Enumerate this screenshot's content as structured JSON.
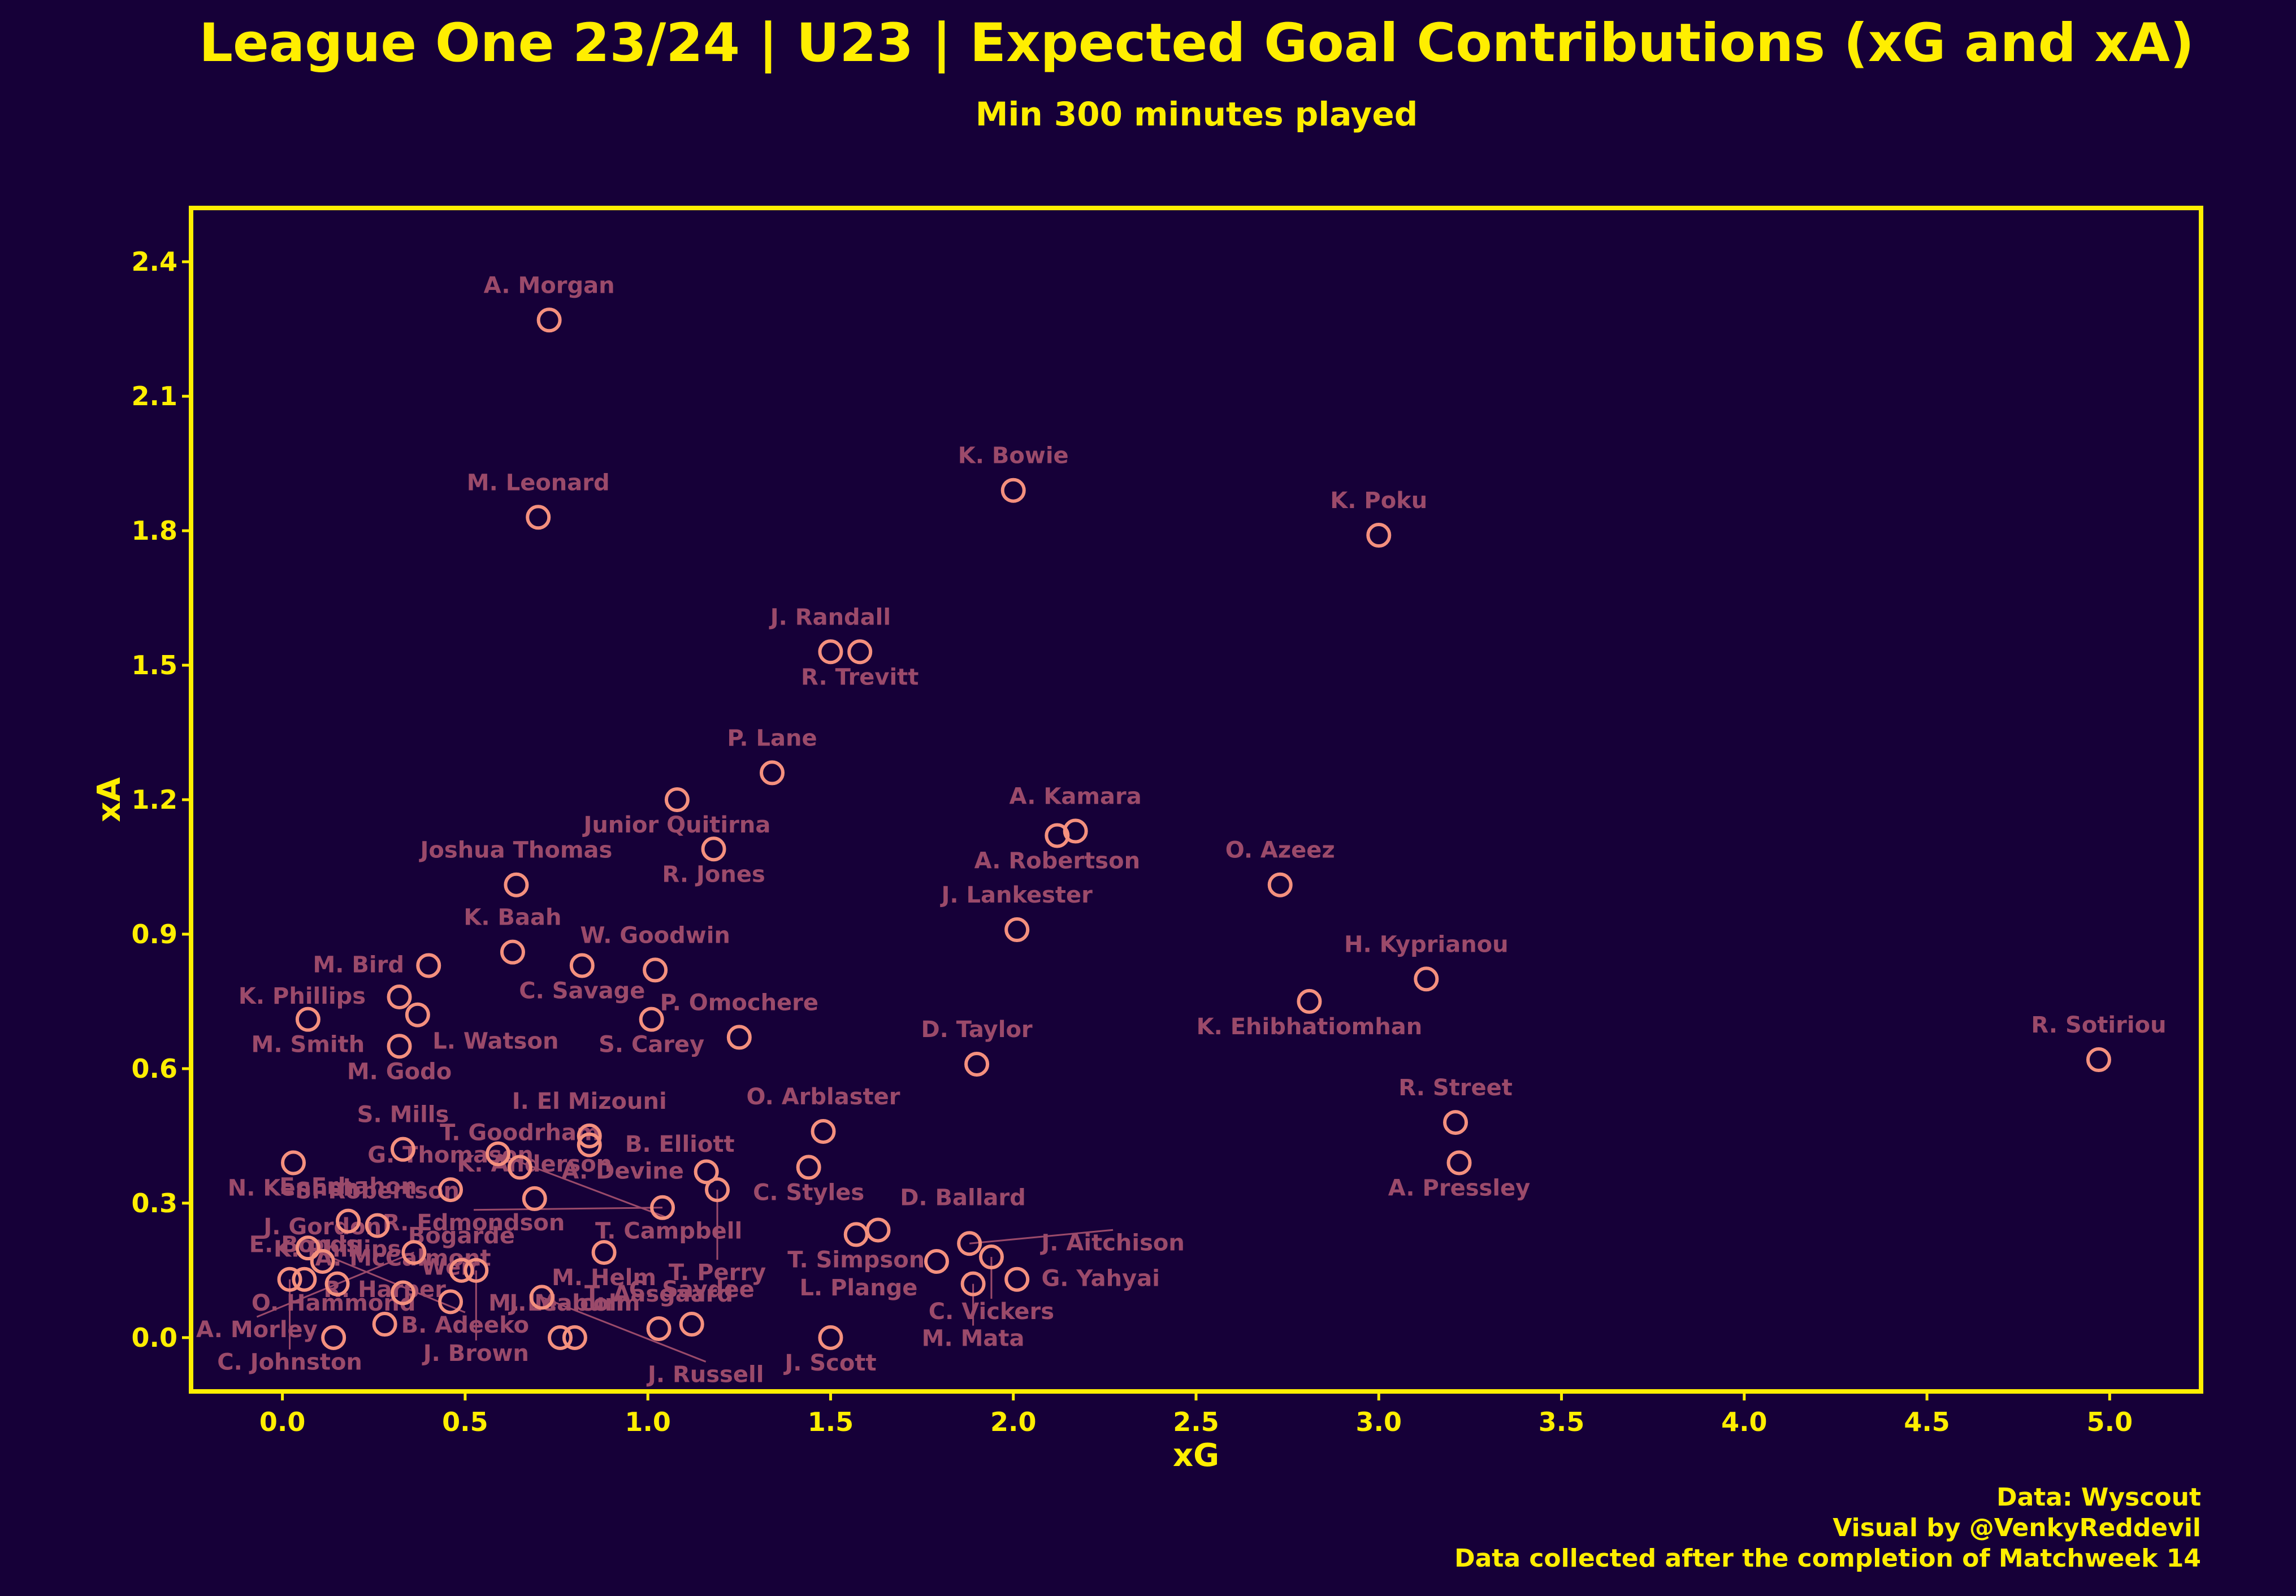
{
  "chart_data": {
    "type": "scatter",
    "title": "League One 23/24 | U23 | Expected Goal Contributions (xG and xA)",
    "subtitle": "Min 300 minutes played",
    "xlabel": "xG",
    "ylabel": "xA",
    "xlim": [
      -0.25,
      5.25
    ],
    "ylim": [
      -0.12,
      2.52
    ],
    "xticks": [
      "0.0",
      "0.5",
      "1.0",
      "1.5",
      "2.0",
      "2.5",
      "3.0",
      "3.5",
      "4.0",
      "4.5",
      "5.0"
    ],
    "yticks": [
      "0.0",
      "0.3",
      "0.6",
      "0.9",
      "1.2",
      "1.5",
      "1.8",
      "2.1",
      "2.4"
    ],
    "grid": false,
    "colors": {
      "background": "#160038",
      "accent": "#ffee00",
      "marker": "#f4907e",
      "label": "#9b4a6a"
    },
    "points": [
      {
        "name": "A. Morgan",
        "x": 0.73,
        "y": 2.27
      },
      {
        "name": "K. Bowie",
        "x": 2.0,
        "y": 1.89
      },
      {
        "name": "M. Leonard",
        "x": 0.7,
        "y": 1.83
      },
      {
        "name": "K. Poku",
        "x": 3.0,
        "y": 1.79
      },
      {
        "name": "J. Randall",
        "x": 1.5,
        "y": 1.53
      },
      {
        "name": "R. Trevitt",
        "x": 1.58,
        "y": 1.53
      },
      {
        "name": "P. Lane",
        "x": 1.34,
        "y": 1.26
      },
      {
        "name": "Junior Quitirna",
        "x": 1.08,
        "y": 1.2
      },
      {
        "name": "A. Kamara",
        "x": 2.17,
        "y": 1.13
      },
      {
        "name": "A. Robertson",
        "x": 2.12,
        "y": 1.12
      },
      {
        "name": "R. Jones",
        "x": 1.18,
        "y": 1.09
      },
      {
        "name": "O. Azeez",
        "x": 2.73,
        "y": 1.01
      },
      {
        "name": "Joshua Thomas",
        "x": 0.64,
        "y": 1.01
      },
      {
        "name": "J. Lankester",
        "x": 2.01,
        "y": 0.91
      },
      {
        "name": "K. Baah",
        "x": 0.63,
        "y": 0.86
      },
      {
        "name": "M. Bird",
        "x": 0.4,
        "y": 0.83
      },
      {
        "name": "C. Savage",
        "x": 0.82,
        "y": 0.83
      },
      {
        "name": "W. Goodwin",
        "x": 1.02,
        "y": 0.82
      },
      {
        "name": "H. Kyprianou",
        "x": 3.13,
        "y": 0.8
      },
      {
        "name": "K. Phillips",
        "x": 0.32,
        "y": 0.76
      },
      {
        "name": "K. Ehibhatiomhan",
        "x": 2.81,
        "y": 0.75
      },
      {
        "name": "L. Watson",
        "x": 0.37,
        "y": 0.72
      },
      {
        "name": "S. Carey",
        "x": 1.01,
        "y": 0.71
      },
      {
        "name": "M. Smith",
        "x": 0.07,
        "y": 0.71
      },
      {
        "name": "P. Omochere",
        "x": 1.25,
        "y": 0.67
      },
      {
        "name": "M. Godo",
        "x": 0.32,
        "y": 0.65
      },
      {
        "name": "R. Sotiriou",
        "x": 4.97,
        "y": 0.62
      },
      {
        "name": "D. Taylor",
        "x": 1.9,
        "y": 0.61
      },
      {
        "name": "R. Street",
        "x": 3.21,
        "y": 0.48
      },
      {
        "name": "O. Arblaster",
        "x": 1.48,
        "y": 0.46
      },
      {
        "name": "I. El Mizouni",
        "x": 0.84,
        "y": 0.45
      },
      {
        "name": "B. Elliott",
        "x": 0.84,
        "y": 0.43
      },
      {
        "name": "S. Mills",
        "x": 0.33,
        "y": 0.42
      },
      {
        "name": "T. Campbell",
        "x": 0.59,
        "y": 0.41
      },
      {
        "name": "N. Kenneh",
        "x": 0.03,
        "y": 0.39
      },
      {
        "name": "A. Pressley",
        "x": 3.22,
        "y": 0.39
      },
      {
        "name": "T. Goodrham",
        "x": 0.65,
        "y": 0.38
      },
      {
        "name": "C. Styles",
        "x": 1.44,
        "y": 0.38
      },
      {
        "name": "A. Devine",
        "x": 1.16,
        "y": 0.37
      },
      {
        "name": "G. Thomason",
        "x": 0.46,
        "y": 0.33
      },
      {
        "name": "T. Perry",
        "x": 1.19,
        "y": 0.33
      },
      {
        "name": "K. Anderson",
        "x": 0.69,
        "y": 0.31
      },
      {
        "name": "R. Edmondson",
        "x": 1.04,
        "y": 0.29
      },
      {
        "name": "E. Erhahon",
        "x": 0.18,
        "y": 0.26
      },
      {
        "name": "S. Robertson",
        "x": 0.26,
        "y": 0.25
      },
      {
        "name": "D. Ballard",
        "x": 1.63,
        "y": 0.24
      },
      {
        "name": "T. Simpson",
        "x": 1.57,
        "y": 0.23
      },
      {
        "name": "J. Aitchison",
        "x": 1.88,
        "y": 0.21
      },
      {
        "name": "B. Adeeko",
        "x": 0.07,
        "y": 0.2
      },
      {
        "name": "A. Morley",
        "x": 0.36,
        "y": 0.19
      },
      {
        "name": "M. Helm",
        "x": 0.88,
        "y": 0.19
      },
      {
        "name": "C. Vickers",
        "x": 1.94,
        "y": 0.18
      },
      {
        "name": "L. Plange",
        "x": 1.79,
        "y": 0.17
      },
      {
        "name": "J. Brown",
        "x": 0.53,
        "y": 0.15
      },
      {
        "name": "J. Gordon",
        "x": 0.11,
        "y": 0.17
      },
      {
        "name": "C. Johnston",
        "x": 0.02,
        "y": 0.13
      },
      {
        "name": "G. Yahyai",
        "x": 2.01,
        "y": 0.13
      },
      {
        "name": "M. Mata",
        "x": 1.89,
        "y": 0.12
      },
      {
        "name": "E. Bonds",
        "x": 0.06,
        "y": 0.13
      },
      {
        "name": "Bogarde",
        "x": 0.49,
        "y": 0.15
      },
      {
        "name": "K. Phillips",
        "x": 0.15,
        "y": 0.12
      },
      {
        "name": "J. Russell",
        "x": 0.71,
        "y": 0.09
      },
      {
        "name": "C. Saydee",
        "x": 1.12,
        "y": 0.03
      },
      {
        "name": "A. McCalmont",
        "x": 0.33,
        "y": 0.1
      },
      {
        "name": "R. Harper",
        "x": 0.28,
        "y": 0.03
      },
      {
        "name": "O. Hammond",
        "x": 0.14,
        "y": 0.0
      },
      {
        "name": "M. Leaburn",
        "x": 0.76,
        "y": 0.0
      },
      {
        "name": "J. Malcolm",
        "x": 0.8,
        "y": 0.0
      },
      {
        "name": "T. Aasgaard",
        "x": 1.03,
        "y": 0.02
      },
      {
        "name": "J. Scott",
        "x": 1.5,
        "y": 0.0
      },
      {
        "name": "Weir",
        "x": 0.46,
        "y": 0.08
      }
    ]
  },
  "footer": {
    "source": "Data: Wyscout",
    "credit": "Visual by @VenkyReddevil",
    "note": "Data collected after the completion of Matchweek 14"
  }
}
